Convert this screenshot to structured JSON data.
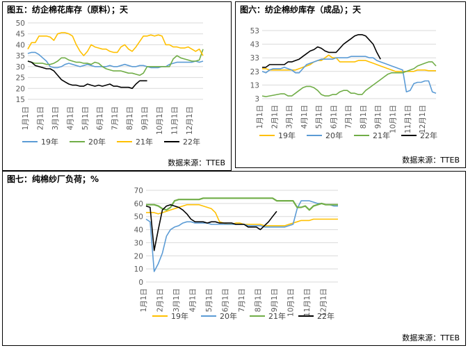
{
  "panels": [
    {
      "title": "图五：纺企棉花库存（原料）；天",
      "source": "数据来源：TTEB",
      "chart_data": {
        "type": "line",
        "ylim": [
          15,
          50
        ],
        "yticks": [
          15,
          20,
          25,
          30,
          35,
          40,
          45,
          50
        ],
        "xlim": [
          0,
          47
        ],
        "xtick_labels": [
          "1月1日",
          "2月1日",
          "3月1日",
          "4月1日",
          "5月1日",
          "6月1日",
          "7月1日",
          "8月1日",
          "9月1日",
          "10月1日",
          "11月1日",
          "12月1日"
        ],
        "xtick_pos": [
          0,
          4,
          8,
          12,
          16,
          20,
          24,
          28,
          32,
          36,
          40,
          44
        ],
        "grid": true,
        "legend": "bottom",
        "series": [
          {
            "name": "19年",
            "color": "#5b9bd5",
            "values": [
              36,
              36.5,
              36.5,
              35.5,
              34,
              32.5,
              30,
              29.5,
              29.5,
              30,
              31,
              31.5,
              31,
              30.5,
              30,
              30.5,
              31,
              30.5,
              30,
              30,
              30,
              30,
              30.5,
              30,
              30,
              30.5,
              31,
              30.5,
              30,
              30,
              30.5,
              30.5,
              30,
              29.5,
              29.5,
              29.5,
              30,
              30,
              31,
              31.5,
              32,
              32,
              32,
              32,
              32,
              32.5,
              32,
              32.5
            ]
          },
          {
            "name": "20年",
            "color": "#70ad47",
            "values": [
              32.5,
              32,
              31.5,
              31.5,
              31.5,
              31,
              31,
              31.5,
              32.5,
              34,
              34,
              33,
              32.5,
              32,
              32,
              31.5,
              31.5,
              31,
              32,
              31.5,
              30,
              29,
              28.5,
              28,
              28,
              28,
              27.5,
              27,
              27,
              26.5,
              26,
              27,
              30,
              30,
              30,
              30,
              30,
              30,
              30,
              33.5,
              35,
              34,
              33.5,
              33,
              32.5,
              32.5,
              33,
              38
            ]
          },
          {
            "name": "21年",
            "color": "#ffc000",
            "values": [
              38,
              41,
              41,
              44,
              44,
              44,
              43.5,
              42,
              45,
              45.5,
              45.5,
              45,
              44,
              40,
              37,
              35,
              37,
              40,
              39,
              38.5,
              38,
              38,
              37,
              36.5,
              36.5,
              39,
              40,
              38,
              37,
              39,
              41.5,
              44,
              44,
              44.5,
              44,
              44.5,
              44,
              40,
              40,
              39,
              39,
              38.5,
              38.5,
              39,
              38,
              37,
              38,
              35
            ]
          },
          {
            "name": "22年",
            "color": "#000000",
            "values": [
              32.5,
              32,
              30.5,
              30,
              29.5,
              29,
              29,
              28,
              26,
              24,
              23,
              22,
              21.5,
              21.5,
              21,
              21,
              22,
              21.5,
              21,
              21.5,
              21,
              21.5,
              22,
              21,
              21,
              20.5,
              20.5,
              20.5,
              20,
              22,
              23.5,
              23.5,
              23.5
            ]
          }
        ]
      }
    },
    {
      "title": "图六：纺企棉纱库存（成品）；天",
      "source": "数据来源：TTEB",
      "chart_data": {
        "type": "line",
        "ylim": [
          3,
          53
        ],
        "yticks": [
          3,
          13,
          23,
          33,
          43,
          53
        ],
        "xlim": [
          0,
          47
        ],
        "xtick_labels": [
          "1月1日",
          "2月1日",
          "3月1日",
          "4月1日",
          "5月1日",
          "6月1日",
          "7月1日",
          "8月1日",
          "9月1日",
          "10月1日",
          "11月1日",
          "12月1日"
        ],
        "xtick_pos": [
          0,
          4,
          8,
          12,
          16,
          20,
          24,
          28,
          32,
          36,
          40,
          44
        ],
        "grid": true,
        "legend": "bottom",
        "series": [
          {
            "name": "19年",
            "color": "#ffc000",
            "values": [
              25,
              25,
              24,
              24,
              24,
              24,
              24,
              24,
              24,
              24,
              25,
              26,
              27,
              28,
              30,
              31,
              31,
              33,
              35,
              33,
              33,
              30,
              30,
              30,
              30,
              30,
              31,
              31,
              31,
              30,
              29,
              28,
              27,
              26,
              25,
              24,
              23,
              23,
              23,
              23,
              23,
              23,
              24,
              24,
              24,
              23.5,
              23.5,
              23.5
            ]
          },
          {
            "name": "20年",
            "color": "#5b9bd5",
            "values": [
              23,
              22,
              24,
              25,
              25,
              25,
              26,
              25,
              24,
              22,
              22,
              25,
              28,
              29,
              30,
              31,
              32,
              32,
              32,
              32,
              33,
              33,
              33,
              33,
              34,
              34,
              34,
              34,
              34,
              33,
              33,
              31,
              30,
              29,
              28,
              27,
              26,
              25,
              24,
              8,
              9,
              14,
              15,
              15,
              16,
              16,
              8,
              7
            ]
          },
          {
            "name": "21年",
            "color": "#70ad47",
            "values": [
              5,
              4.5,
              5,
              5.5,
              6,
              6.5,
              6.5,
              5,
              5,
              7,
              9,
              11,
              12,
              12,
              11,
              9,
              6,
              5,
              5,
              6,
              6,
              8,
              9,
              9,
              7,
              7,
              6,
              6,
              9,
              11,
              13,
              15,
              17,
              19,
              21,
              22,
              22,
              22,
              22,
              23,
              24,
              25,
              27,
              28,
              29,
              30,
              30,
              27
            ]
          },
          {
            "name": "22年",
            "color": "#000000",
            "values": [
              26,
              26,
              28,
              28,
              28,
              28,
              28,
              30,
              30,
              31,
              32,
              34,
              36,
              38,
              39,
              41,
              40,
              38,
              37,
              37,
              37,
              40,
              43,
              45,
              47,
              49,
              50,
              50,
              49,
              46,
              43,
              37,
              32
            ]
          }
        ]
      }
    },
    {
      "title": "图七：纯棉纱厂负荷；%",
      "source": "数据来源：TTEB",
      "chart_data": {
        "type": "line",
        "ylim": [
          0,
          70
        ],
        "yticks": [
          0,
          10,
          20,
          30,
          40,
          50,
          60,
          70
        ],
        "xlim": [
          0,
          47
        ],
        "xtick_labels": [
          "1月1日",
          "2月1日",
          "3月1日",
          "4月1日",
          "5月1日",
          "6月1日",
          "7月1日",
          "8月1日",
          "9月1日",
          "10月1日",
          "11月1日",
          "12月1日"
        ],
        "xtick_pos": [
          0,
          4,
          8,
          12,
          16,
          20,
          24,
          28,
          32,
          36,
          40,
          44
        ],
        "grid": true,
        "legend": "bottom",
        "series": [
          {
            "name": "19年",
            "color": "#ffc000",
            "values": [
              53,
              53,
              53,
              52,
              53,
              54,
              55,
              56,
              57,
              58,
              59,
              59,
              59,
              59,
              58,
              57,
              56,
              53,
              46,
              45,
              44,
              44,
              45,
              45,
              44,
              44,
              44,
              44,
              44,
              43,
              43,
              43,
              43,
              43,
              43,
              44,
              45,
              46,
              47,
              47,
              47,
              48,
              48,
              48,
              48,
              48,
              48,
              48
            ]
          },
          {
            "name": "20年",
            "color": "#5b9bd5",
            "values": [
              48,
              46,
              8,
              14,
              22,
              35,
              40,
              42,
              43,
              45,
              46,
              46,
              45,
              45,
              45,
              45,
              44,
              44,
              44,
              44,
              44,
              44,
              44,
              44,
              44,
              43,
              43,
              43,
              43,
              42,
              42,
              42,
              42,
              42,
              42,
              43,
              44,
              56,
              62,
              62,
              62,
              61,
              60,
              60,
              59,
              59,
              58,
              58
            ]
          },
          {
            "name": "21年",
            "color": "#70ad47",
            "values": [
              59,
              59,
              59,
              58,
              56,
              55,
              57,
              62,
              63,
              63,
              63,
              63,
              63,
              63,
              64,
              64,
              64,
              64,
              64,
              64,
              64,
              64,
              64,
              64,
              64,
              64,
              64,
              64,
              64,
              64,
              64,
              64,
              62,
              62,
              62,
              62,
              62,
              57,
              57,
              58,
              55,
              58,
              59,
              60,
              59,
              59,
              59,
              59
            ]
          },
          {
            "name": "22年",
            "color": "#000000",
            "values": [
              58,
              57,
              24,
              40,
              55,
              58,
              59,
              58,
              57,
              55,
              52,
              48,
              46,
              46,
              46,
              45,
              46,
              46,
              45,
              45,
              45,
              45,
              44,
              44,
              44,
              42,
              42,
              42,
              40,
              43,
              46,
              50,
              54
            ]
          }
        ]
      }
    }
  ]
}
